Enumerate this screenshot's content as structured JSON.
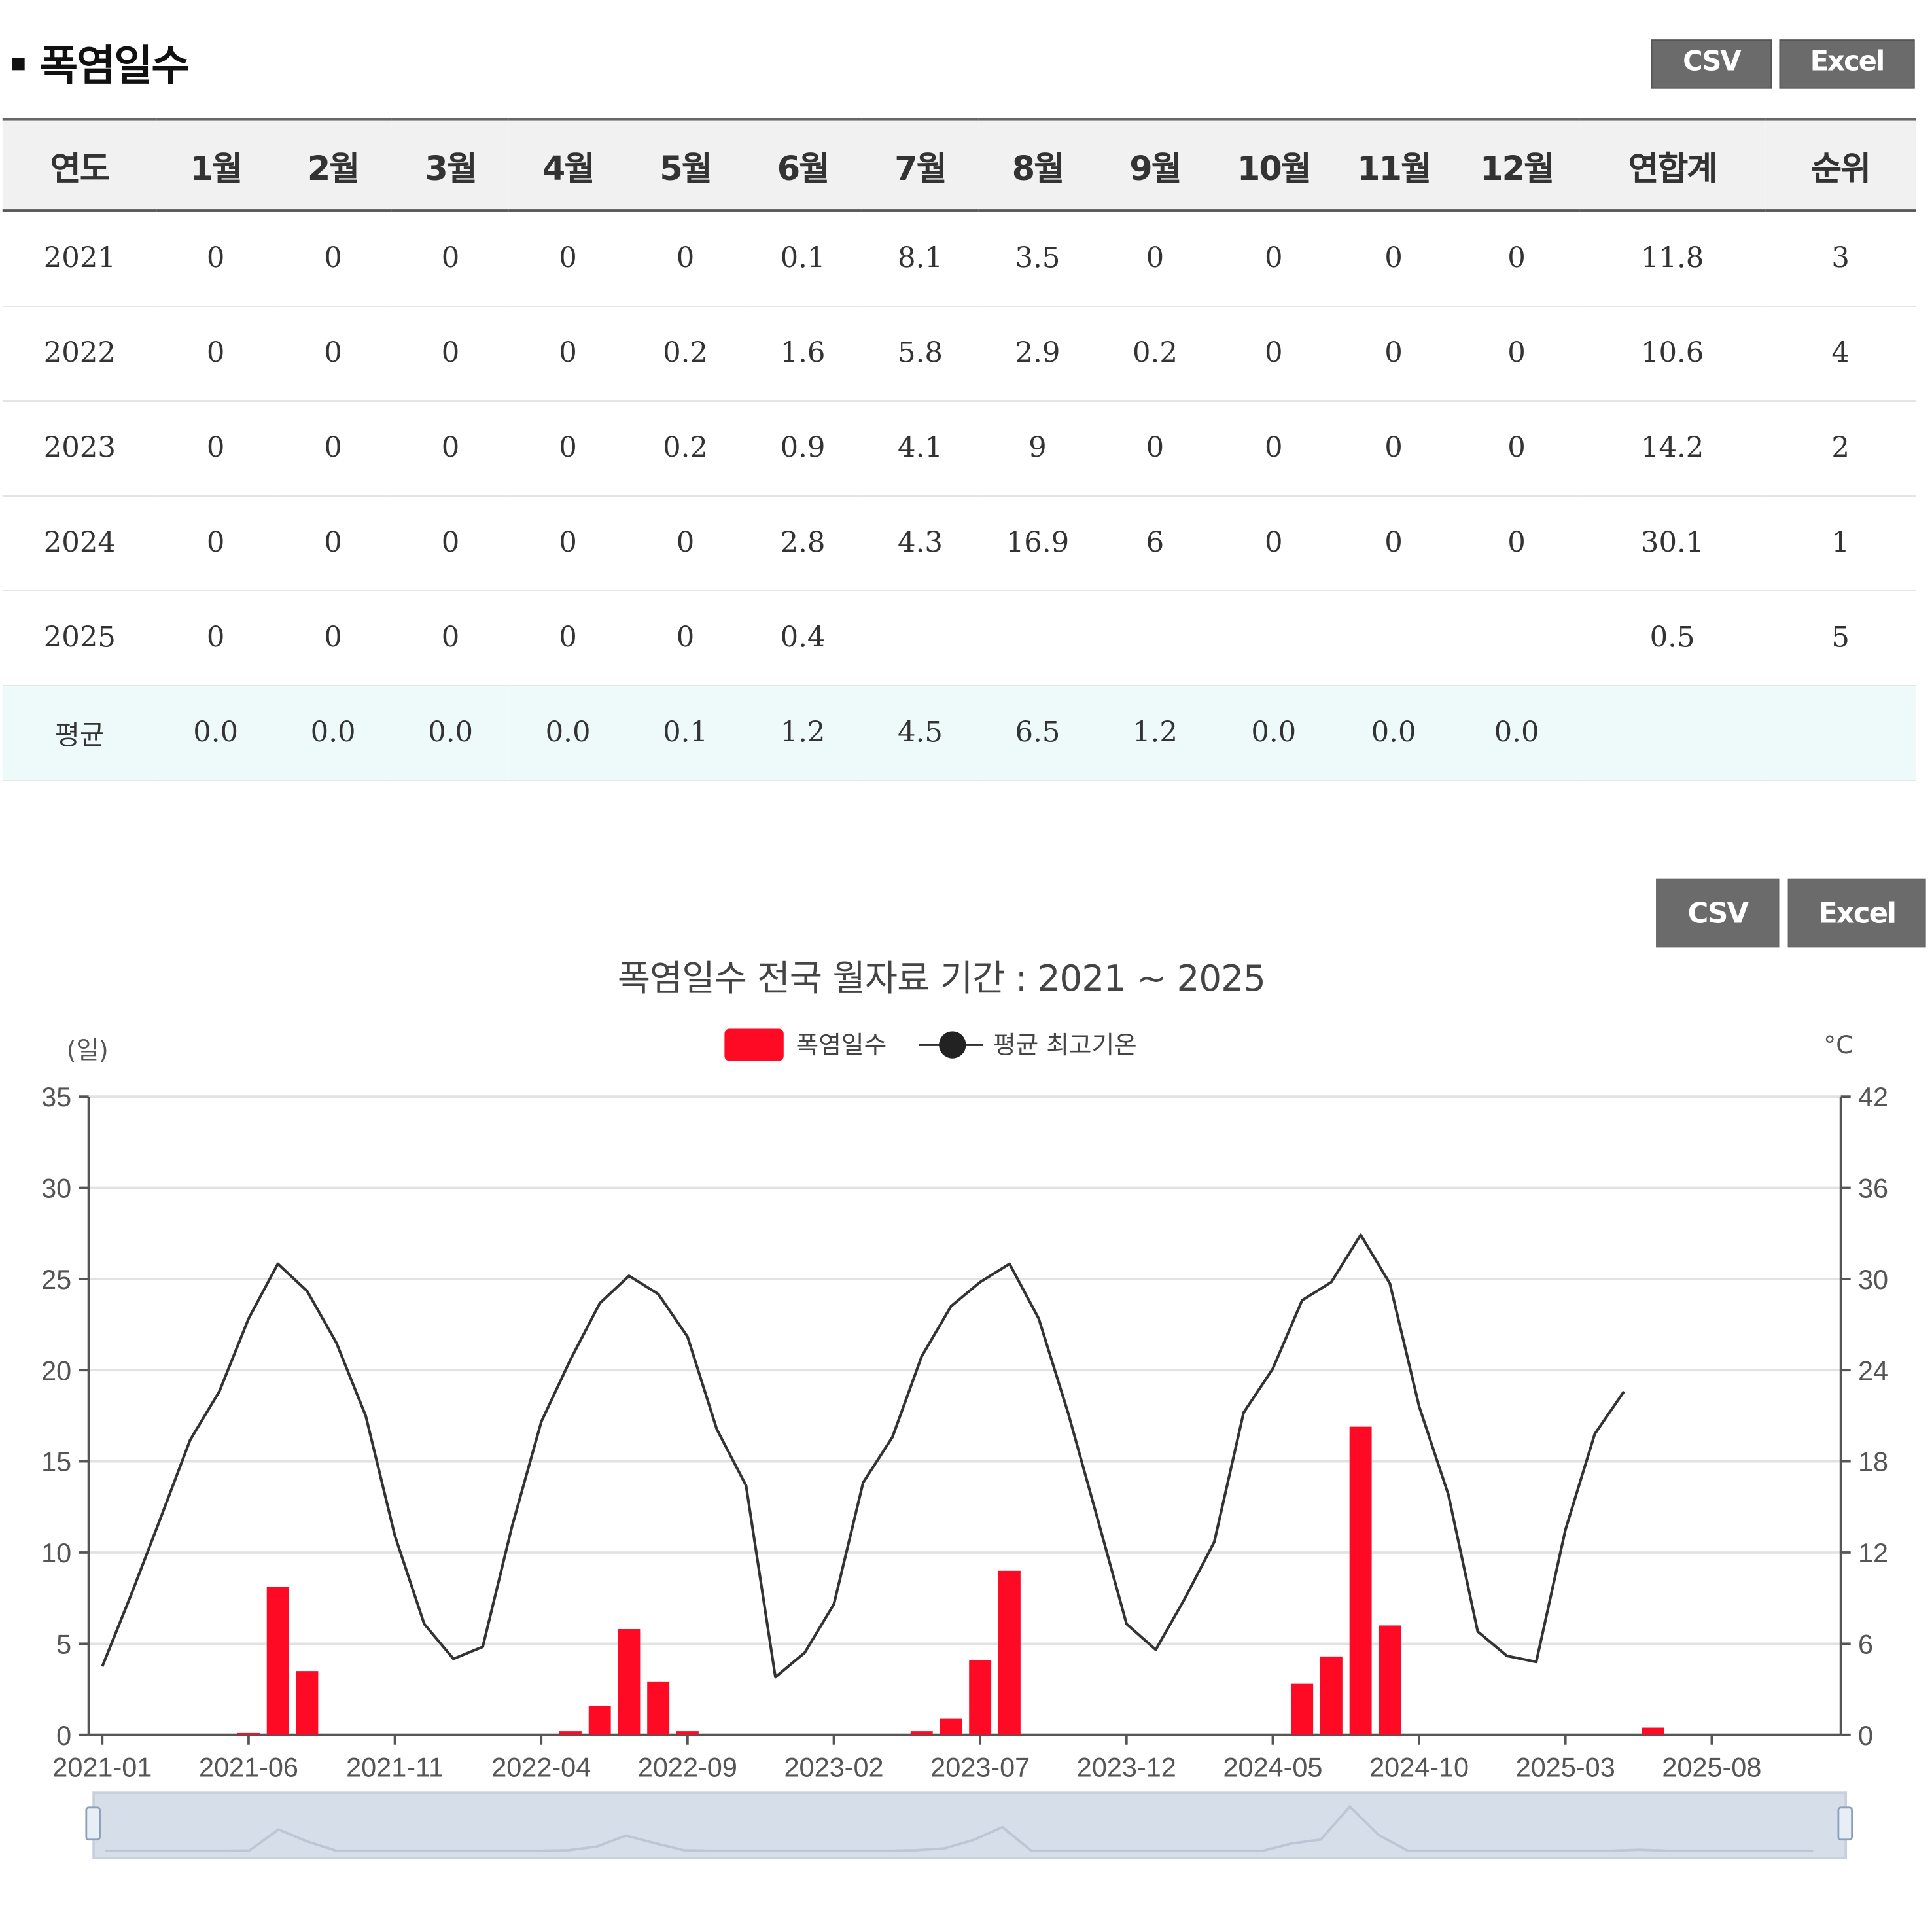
{
  "section": {
    "title": "폭염일수"
  },
  "buttons": {
    "csv": "CSV",
    "excel": "Excel"
  },
  "table": {
    "headers": [
      "연도",
      "1월",
      "2월",
      "3월",
      "4월",
      "5월",
      "6월",
      "7월",
      "8월",
      "9월",
      "10월",
      "11월",
      "12월",
      "연합계",
      "순위"
    ],
    "rows": [
      [
        "2021",
        "0",
        "0",
        "0",
        "0",
        "0",
        "0.1",
        "8.1",
        "3.5",
        "0",
        "0",
        "0",
        "0",
        "11.8",
        "3"
      ],
      [
        "2022",
        "0",
        "0",
        "0",
        "0",
        "0.2",
        "1.6",
        "5.8",
        "2.9",
        "0.2",
        "0",
        "0",
        "0",
        "10.6",
        "4"
      ],
      [
        "2023",
        "0",
        "0",
        "0",
        "0",
        "0.2",
        "0.9",
        "4.1",
        "9",
        "0",
        "0",
        "0",
        "0",
        "14.2",
        "2"
      ],
      [
        "2024",
        "0",
        "0",
        "0",
        "0",
        "0",
        "2.8",
        "4.3",
        "16.9",
        "6",
        "0",
        "0",
        "0",
        "30.1",
        "1"
      ],
      [
        "2025",
        "0",
        "0",
        "0",
        "0",
        "0",
        "0.4",
        "",
        "",
        "",
        "",
        "",
        "",
        "0.5",
        "5"
      ]
    ],
    "average": [
      "평균",
      "0.0",
      "0.0",
      "0.0",
      "0.0",
      "0.1",
      "1.2",
      "4.5",
      "6.5",
      "1.2",
      "0.0",
      "0.0",
      "0.0",
      "",
      ""
    ]
  },
  "chart_data": {
    "type": "bar",
    "title": "폭염일수 전국 월자료 기간 : 2021 ~ 2025",
    "ylabel": "(일)",
    "y2label": "°C",
    "ylim": [
      0,
      35
    ],
    "y_ticks": [
      0,
      5,
      10,
      15,
      20,
      25,
      30,
      35
    ],
    "y2lim": [
      0,
      42
    ],
    "y2_ticks": [
      0,
      6,
      12,
      18,
      24,
      30,
      36,
      42
    ],
    "x_tick_labels": [
      "2021-01",
      "2021-06",
      "2021-11",
      "2022-04",
      "2022-09",
      "2023-02",
      "2023-07",
      "2023-12",
      "2024-05",
      "2024-10",
      "2025-03",
      "2025-08"
    ],
    "legend_position": "top-center",
    "grid": true,
    "colors": {
      "bar": "#ff0a24",
      "line": "#333333",
      "grid": "#e2e2e2",
      "navigator": "#d6dee9"
    },
    "categories": [
      "2021-01",
      "2021-02",
      "2021-03",
      "2021-04",
      "2021-05",
      "2021-06",
      "2021-07",
      "2021-08",
      "2021-09",
      "2021-10",
      "2021-11",
      "2021-12",
      "2022-01",
      "2022-02",
      "2022-03",
      "2022-04",
      "2022-05",
      "2022-06",
      "2022-07",
      "2022-08",
      "2022-09",
      "2022-10",
      "2022-11",
      "2022-12",
      "2023-01",
      "2023-02",
      "2023-03",
      "2023-04",
      "2023-05",
      "2023-06",
      "2023-07",
      "2023-08",
      "2023-09",
      "2023-10",
      "2023-11",
      "2023-12",
      "2024-01",
      "2024-02",
      "2024-03",
      "2024-04",
      "2024-05",
      "2024-06",
      "2024-07",
      "2024-08",
      "2024-09",
      "2024-10",
      "2024-11",
      "2024-12",
      "2025-01",
      "2025-02",
      "2025-03",
      "2025-04",
      "2025-05",
      "2025-06",
      "2025-07",
      "2025-08",
      "2025-09",
      "2025-10",
      "2025-11",
      "2025-12"
    ],
    "series": [
      {
        "name": "폭염일수",
        "type": "bar",
        "axis": "left",
        "values": [
          0,
          0,
          0,
          0,
          0,
          0.1,
          8.1,
          3.5,
          0,
          0,
          0,
          0,
          0,
          0,
          0,
          0,
          0.2,
          1.6,
          5.8,
          2.9,
          0.2,
          0,
          0,
          0,
          0,
          0,
          0,
          0,
          0.2,
          0.9,
          4.1,
          9,
          0,
          0,
          0,
          0,
          0,
          0,
          0,
          0,
          0,
          2.8,
          4.3,
          16.9,
          6,
          0,
          0,
          0,
          0,
          0,
          0,
          0,
          0,
          0.4,
          null,
          null,
          null,
          null,
          null,
          null
        ]
      },
      {
        "name": "평균 최고기온",
        "type": "line",
        "axis": "right",
        "values": [
          4.5,
          9.3,
          14.3,
          19.4,
          22.6,
          27.4,
          31,
          29.2,
          25.8,
          21,
          13.1,
          7.3,
          5.0,
          5.8,
          13.7,
          20.6,
          24.7,
          28.4,
          30.2,
          29.0,
          26.2,
          20.1,
          16.4,
          3.8,
          5.4,
          8.6,
          16.6,
          19.6,
          24.9,
          28.2,
          29.8,
          31.0,
          27.4,
          21.2,
          14.3,
          7.3,
          5.6,
          9.0,
          12.7,
          21.2,
          24.1,
          28.6,
          29.8,
          32.9,
          29.7,
          21.6,
          15.8,
          6.8,
          5.2,
          4.8,
          13.5,
          19.8,
          22.6,
          null,
          null,
          null,
          null,
          null,
          null,
          null
        ]
      }
    ]
  }
}
